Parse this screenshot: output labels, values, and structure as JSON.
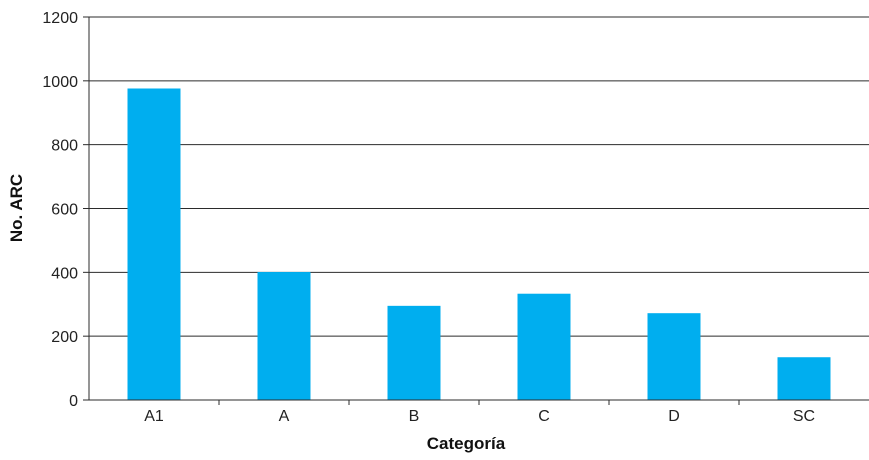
{
  "chart_data": {
    "type": "bar",
    "categories": [
      "A1",
      "A",
      "B",
      "C",
      "D",
      "SC"
    ],
    "values": [
      976,
      401,
      295,
      333,
      272,
      134
    ],
    "xlabel": "Categoría",
    "ylabel": "No. ARC",
    "ylim": [
      0,
      1200
    ],
    "yticks": [
      "0",
      "200",
      "400",
      "600",
      "800",
      "1000",
      "1200"
    ],
    "grid": "horizontal",
    "bar_color": "#00AEEF"
  }
}
